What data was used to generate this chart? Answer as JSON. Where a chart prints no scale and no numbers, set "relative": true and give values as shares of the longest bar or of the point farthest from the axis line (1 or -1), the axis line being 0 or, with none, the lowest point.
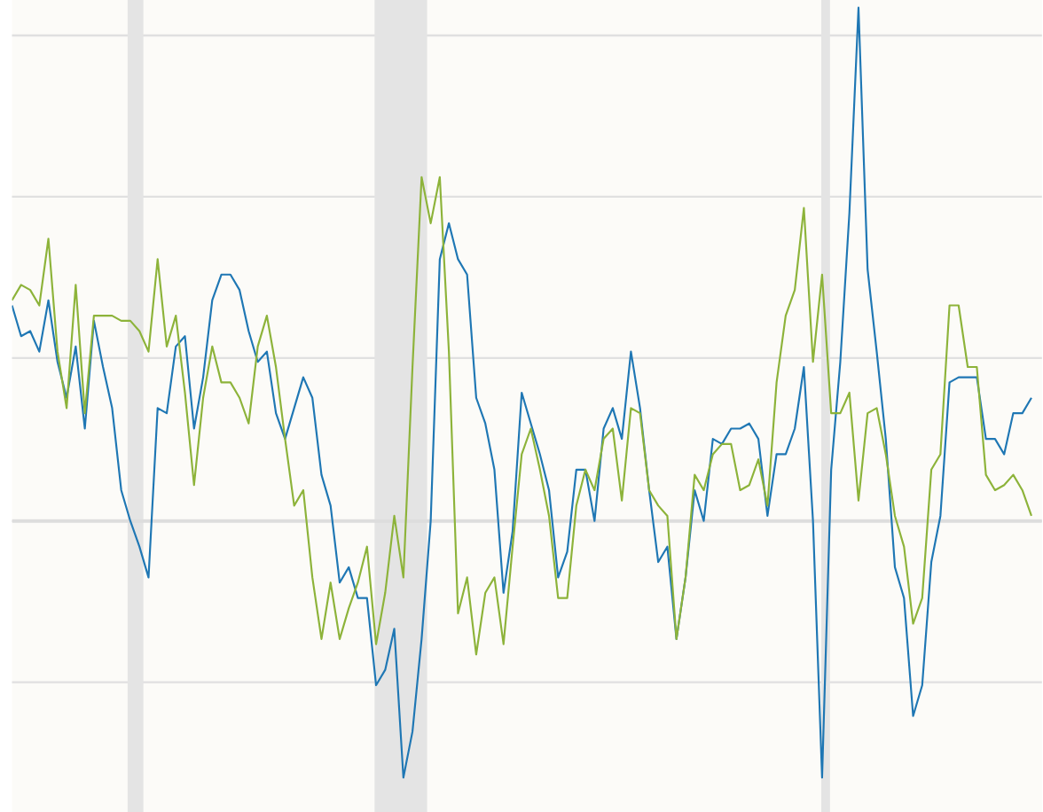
{
  "chart_data": {
    "type": "line",
    "relative": true,
    "grid": "y",
    "categories": [
      null,
      null,
      null,
      null,
      null,
      null,
      null,
      null,
      null,
      null,
      null,
      null,
      null,
      null,
      null,
      null,
      null,
      null,
      null,
      null,
      null,
      null,
      null,
      null,
      null,
      null,
      null,
      null,
      null,
      null,
      null,
      null,
      null,
      null,
      null,
      null,
      null,
      null,
      null,
      null,
      null,
      null,
      null,
      null,
      null,
      null,
      null,
      null,
      null,
      null,
      null,
      null,
      null,
      null,
      null,
      null,
      null,
      null,
      null,
      null,
      null,
      null,
      null,
      null,
      null,
      null,
      null,
      null,
      null,
      null,
      null,
      null,
      null,
      null,
      null,
      null,
      null,
      null,
      null,
      null,
      null,
      null,
      null,
      null,
      null,
      null,
      null,
      null,
      null,
      null,
      null,
      null,
      null,
      null,
      null,
      null,
      null,
      null,
      null,
      null,
      null,
      null,
      null,
      null,
      null,
      null,
      null,
      null,
      null,
      null,
      null,
      null,
      null
    ],
    "series": [
      {
        "color": "#1f77b4",
        "values": [
          0.42,
          0.36,
          0.37,
          0.33,
          0.43,
          0.31,
          0.24,
          0.34,
          0.18,
          0.39,
          0.3,
          0.22,
          0.06,
          0.0,
          -0.05,
          -0.11,
          0.22,
          0.21,
          0.34,
          0.36,
          0.18,
          0.28,
          0.43,
          0.48,
          0.48,
          0.45,
          0.37,
          0.31,
          0.33,
          0.21,
          0.16,
          0.22,
          0.28,
          0.24,
          0.09,
          0.03,
          -0.12,
          -0.09,
          -0.15,
          -0.15,
          -0.32,
          -0.29,
          -0.21,
          -0.5,
          -0.41,
          -0.23,
          0.0,
          0.51,
          0.58,
          0.51,
          0.48,
          0.24,
          0.19,
          0.1,
          -0.14,
          -0.02,
          0.25,
          0.19,
          0.13,
          0.06,
          -0.11,
          -0.06,
          0.1,
          0.1,
          0.0,
          0.18,
          0.22,
          0.16,
          0.33,
          0.22,
          0.06,
          -0.08,
          -0.05,
          -0.23,
          -0.11,
          0.06,
          0.0,
          0.16,
          0.15,
          0.18,
          0.18,
          0.19,
          0.16,
          0.01,
          0.13,
          0.13,
          0.18,
          0.3,
          0.0,
          -0.5,
          0.1,
          0.31,
          0.6,
          1.0,
          0.49,
          0.33,
          0.16,
          -0.09,
          -0.15,
          -0.38,
          -0.32,
          -0.08,
          0.01,
          0.27,
          0.28,
          0.28,
          0.28,
          0.16,
          0.16,
          0.13,
          0.21,
          0.21,
          0.24
        ]
      },
      {
        "color": "#8db33a",
        "values": [
          0.43,
          0.46,
          0.45,
          0.42,
          0.55,
          0.33,
          0.22,
          0.46,
          0.21,
          0.4,
          0.4,
          0.4,
          0.39,
          0.39,
          0.37,
          0.33,
          0.51,
          0.34,
          0.4,
          0.25,
          0.07,
          0.24,
          0.34,
          0.27,
          0.27,
          0.24,
          0.19,
          0.34,
          0.4,
          0.3,
          0.16,
          0.03,
          0.06,
          -0.11,
          -0.23,
          -0.12,
          -0.23,
          -0.17,
          -0.12,
          -0.05,
          -0.24,
          -0.14,
          0.01,
          -0.11,
          0.3,
          0.67,
          0.58,
          0.67,
          0.33,
          -0.18,
          -0.11,
          -0.26,
          -0.14,
          -0.11,
          -0.24,
          -0.05,
          0.13,
          0.18,
          0.1,
          0.01,
          -0.15,
          -0.15,
          0.03,
          0.1,
          0.06,
          0.16,
          0.18,
          0.04,
          0.22,
          0.21,
          0.06,
          0.03,
          0.01,
          -0.23,
          -0.11,
          0.09,
          0.06,
          0.13,
          0.15,
          0.15,
          0.06,
          0.07,
          0.12,
          0.03,
          0.27,
          0.4,
          0.45,
          0.61,
          0.31,
          0.48,
          0.21,
          0.21,
          0.25,
          0.04,
          0.21,
          0.22,
          0.13,
          0.01,
          -0.05,
          -0.2,
          -0.15,
          0.1,
          0.13,
          0.42,
          0.42,
          0.3,
          0.3,
          0.09,
          0.06,
          0.07,
          0.09,
          0.06,
          0.01
        ]
      }
    ]
  }
}
